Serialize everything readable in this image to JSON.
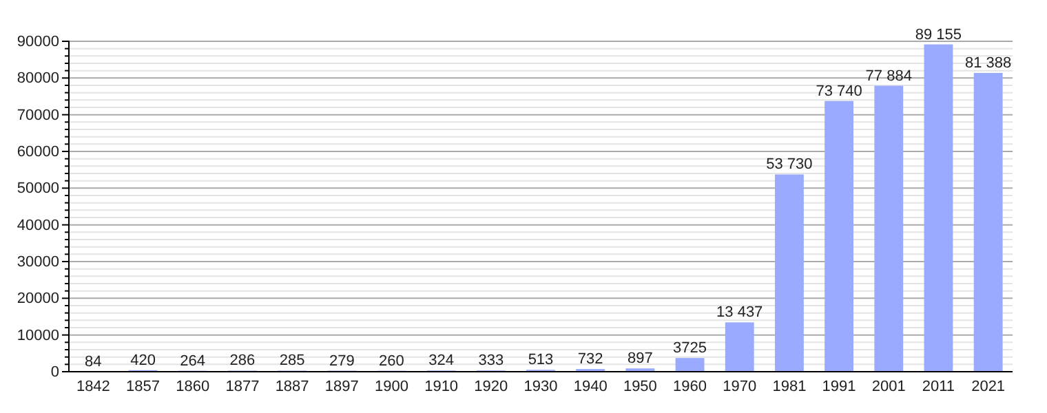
{
  "chart_data": {
    "type": "bar",
    "categories": [
      "1842",
      "1857",
      "1860",
      "1877",
      "1887",
      "1897",
      "1900",
      "1910",
      "1920",
      "1930",
      "1940",
      "1950",
      "1960",
      "1970",
      "1981",
      "1991",
      "2001",
      "2011",
      "2021"
    ],
    "values": [
      84,
      420,
      264,
      286,
      285,
      279,
      260,
      324,
      333,
      513,
      732,
      897,
      3725,
      13437,
      53730,
      73740,
      77884,
      89155,
      81388
    ],
    "value_labels": [
      "84",
      "420",
      "264",
      "286",
      "285",
      "279",
      "260",
      "324",
      "333",
      "513",
      "732",
      "897",
      "3725",
      "13 437",
      "53 730",
      "73 740",
      "77 884",
      "89 155",
      "81 388"
    ],
    "color": "#99aaff",
    "ylim": [
      0,
      90000
    ],
    "yticks": [
      0,
      {
        "value": 2000,
        "label": null
      },
      {
        "value": 4000,
        "label": null
      },
      {
        "value": 6000,
        "label": null
      },
      {
        "value": 8000,
        "label": null
      },
      10000,
      {
        "value": 12000,
        "label": null
      },
      {
        "value": 14000,
        "label": null
      },
      {
        "value": 16000,
        "label": null
      },
      {
        "value": 18000,
        "label": null
      },
      20000,
      {
        "value": 22000,
        "label": null
      },
      {
        "value": 24000,
        "label": null
      },
      {
        "value": 26000,
        "label": null
      },
      {
        "value": 28000,
        "label": null
      },
      30000,
      {
        "value": 32000,
        "label": null
      },
      {
        "value": 34000,
        "label": null
      },
      {
        "value": 36000,
        "label": null
      },
      {
        "value": 38000,
        "label": null
      },
      40000,
      {
        "value": 42000,
        "label": null
      },
      {
        "value": 44000,
        "label": null
      },
      {
        "value": 46000,
        "label": null
      },
      {
        "value": 48000,
        "label": null
      },
      50000,
      {
        "value": 52000,
        "label": null
      },
      {
        "value": 54000,
        "label": null
      },
      {
        "value": 56000,
        "label": null
      },
      {
        "value": 58000,
        "label": null
      },
      60000,
      {
        "value": 62000,
        "label": null
      },
      {
        "value": 64000,
        "label": null
      },
      {
        "value": 66000,
        "label": null
      },
      {
        "value": 68000,
        "label": null
      },
      70000,
      {
        "value": 72000,
        "label": null
      },
      {
        "value": 74000,
        "label": null
      },
      {
        "value": 76000,
        "label": null
      },
      {
        "value": 78000,
        "label": null
      },
      80000,
      {
        "value": 82000,
        "label": null
      },
      {
        "value": 84000,
        "label": null
      },
      {
        "value": 86000,
        "label": null
      },
      {
        "value": 88000,
        "label": null
      },
      90000
    ],
    "grid": "y"
  }
}
